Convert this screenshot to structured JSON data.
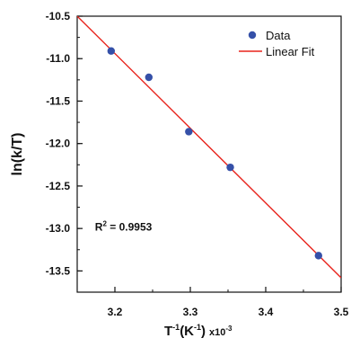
{
  "chart_data": {
    "type": "scatter",
    "xlabel": {
      "prefix": "T",
      "sup1": "-1",
      "mid": "(K",
      "sup2": "-1",
      "suffix": ")",
      "mult": "x10",
      "mult_sup": "-3"
    },
    "ylabel": "ln(k/T)",
    "xlim": [
      3.15,
      3.5
    ],
    "ylim": [
      -13.75,
      -10.5
    ],
    "xticks": [
      3.2,
      3.3,
      3.4,
      3.5
    ],
    "xtick_labels": [
      "3.2",
      "3.3",
      "3.4",
      "3.5"
    ],
    "yticks": [
      -10.5,
      -11.0,
      -11.5,
      -12.0,
      -12.5,
      -13.0,
      -13.5
    ],
    "ytick_labels": [
      "-10.5",
      "-11.0",
      "-11.5",
      "-12.0",
      "-12.5",
      "-13.0",
      "-13.5"
    ],
    "grid": false,
    "legend_position": "top-right",
    "series": [
      {
        "name": "Data",
        "kind": "scatter",
        "color": "#3550a8",
        "x": [
          3.195,
          3.245,
          3.298,
          3.353,
          3.47
        ],
        "y": [
          -10.91,
          -11.22,
          -11.86,
          -12.28,
          -13.32
        ]
      },
      {
        "name": "Linear Fit",
        "kind": "line",
        "color": "#e8231c",
        "x": [
          3.15,
          3.5
        ],
        "y": [
          -10.5,
          -13.58
        ]
      }
    ],
    "annotation": {
      "text_base": "R",
      "text_sup": "2",
      "text_rest": " = 0.9953",
      "x": 3.17,
      "y": -12.98
    }
  }
}
